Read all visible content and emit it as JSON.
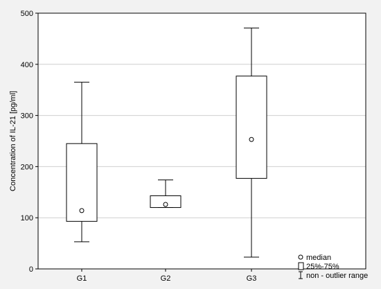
{
  "chart_data": {
    "type": "box",
    "categories": [
      "G1",
      "G2",
      "G3"
    ],
    "boxes": [
      {
        "category": "G1",
        "min": 53,
        "q1": 93,
        "median": 114,
        "q3": 245,
        "max": 365
      },
      {
        "category": "G2",
        "min": 120,
        "q1": 120,
        "median": 126,
        "q3": 143,
        "max": 174
      },
      {
        "category": "G3",
        "min": 23,
        "q1": 177,
        "median": 253,
        "q3": 377,
        "max": 471
      }
    ],
    "title": "",
    "xlabel": "",
    "ylabel": "Concentration of IL-21 [pg/ml]",
    "ylim": [
      0,
      500
    ],
    "yticks": [
      0,
      100,
      200,
      300,
      400,
      500
    ],
    "grid": "horizontal",
    "legend": {
      "placement": "bottom-right",
      "entries": [
        {
          "symbol": "circle",
          "label": "median"
        },
        {
          "symbol": "box",
          "label": "25%-75%"
        },
        {
          "symbol": "whisker",
          "label": "non - outlier range"
        }
      ]
    }
  }
}
